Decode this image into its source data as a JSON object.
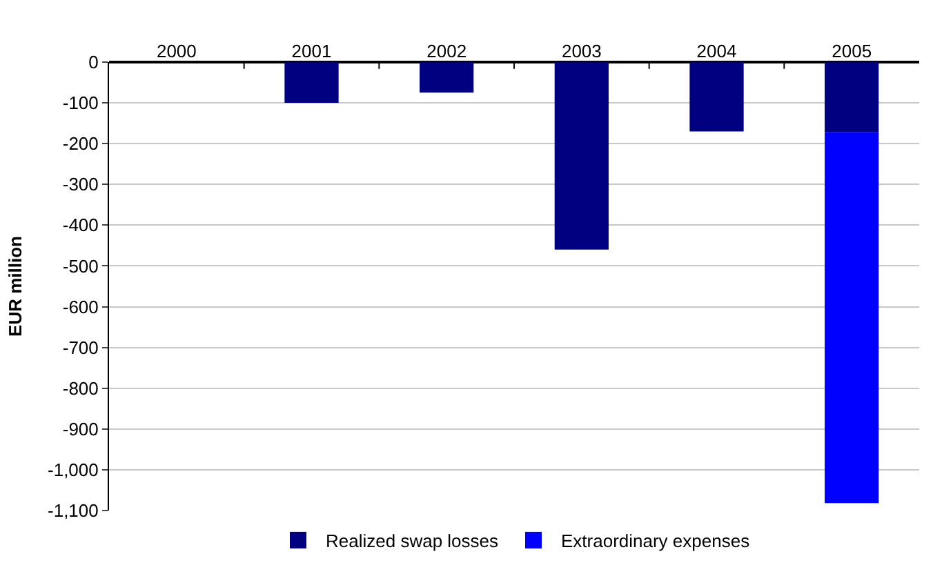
{
  "chart_data": {
    "type": "bar",
    "ylabel": "EUR million",
    "stacked": true,
    "categories": [
      "2000",
      "2001",
      "2002",
      "2003",
      "2004",
      "2005"
    ],
    "series": [
      {
        "name": "Realized swap losses",
        "color": "#000080",
        "values": [
          null,
          -100,
          -75,
          -460,
          -170,
          -172
        ]
      },
      {
        "name": "Extraordinary expenses",
        "color": "#0000ff",
        "values": [
          null,
          null,
          null,
          null,
          null,
          -910
        ]
      }
    ],
    "ylim": [
      -1100,
      0
    ],
    "yticks": [
      0,
      -100,
      -200,
      -300,
      -400,
      -500,
      -600,
      -700,
      -800,
      -900,
      {
        "value": -1000,
        "label": "-1,000"
      },
      {
        "value": -1100,
        "label": "-1,100"
      }
    ],
    "grid": "y",
    "legend": "bottom"
  }
}
